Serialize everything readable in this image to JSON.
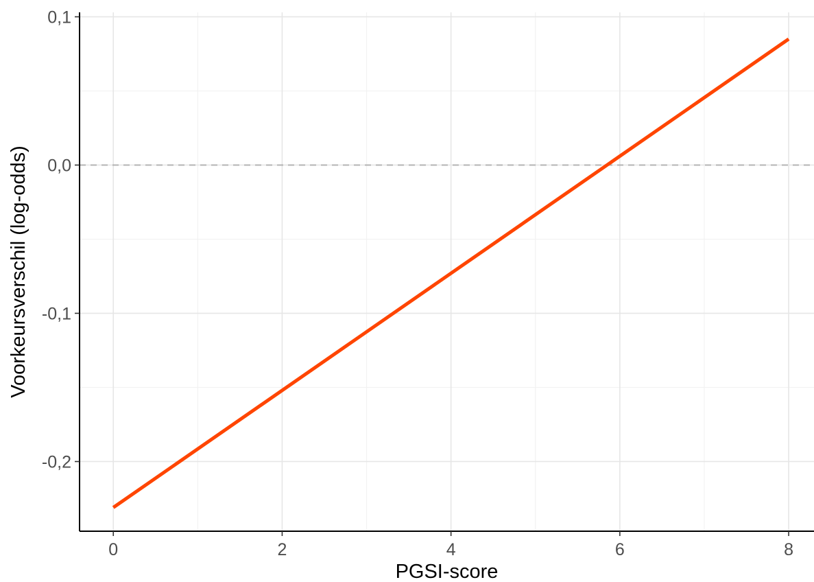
{
  "chart_data": {
    "type": "line",
    "title": "",
    "xlabel": "PGSI-score",
    "ylabel": "Voorkeursverschil (log-odds)",
    "xlim": [
      -0.4,
      8.3
    ],
    "ylim": [
      -0.247,
      0.103
    ],
    "x_ticks": [
      0,
      2,
      4,
      6,
      8
    ],
    "x_tick_labels": [
      "0",
      "2",
      "4",
      "6",
      "8"
    ],
    "y_ticks": [
      -0.2,
      -0.1,
      0.0,
      0.1
    ],
    "y_tick_labels": [
      "-0,2",
      "-0,1",
      "0,0",
      "0,1"
    ],
    "grid": true,
    "reference_line": {
      "y": 0,
      "style": "dashed",
      "color": "#b3b3b3"
    },
    "series": [
      {
        "x": [
          0,
          8
        ],
        "y": [
          -0.231,
          0.085
        ],
        "color": "#ff4500"
      }
    ]
  }
}
